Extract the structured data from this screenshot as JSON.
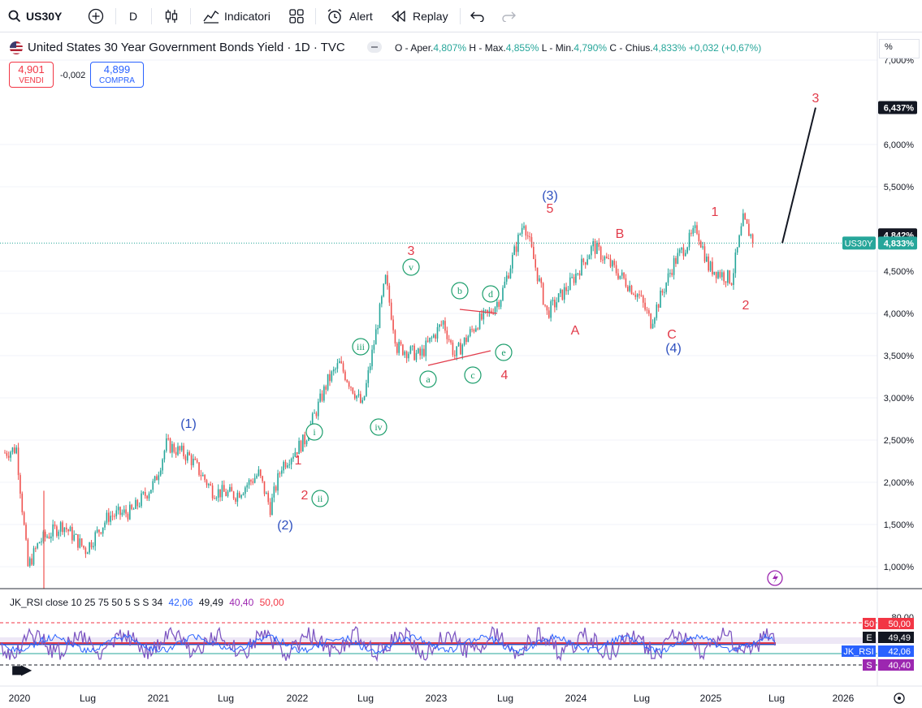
{
  "toolbar": {
    "symbol": "US30Y",
    "interval": "D",
    "indicators_label": "Indicatori",
    "alert_label": "Alert",
    "replay_label": "Replay"
  },
  "legend": {
    "title": "United States 30 Year Government Bonds Yield · 1D · TVC",
    "o_label": "O - Aper.",
    "o_val": "4,807%",
    "h_label": "H - Max.",
    "h_val": "4,855%",
    "l_label": "L - Min.",
    "l_val": "4,790%",
    "c_label": "C - Chius.",
    "c_val": "4,833%",
    "change": "+0,032 (+0,67%)"
  },
  "trade": {
    "sell_price": "4,901",
    "sell_label": "VENDI",
    "spread": "-0,002",
    "buy_price": "4,899",
    "buy_label": "COMPRA"
  },
  "scale_unit": "%",
  "price_axis_labels": [
    {
      "v": 7.0,
      "t": "7,000%"
    },
    {
      "v": 6.0,
      "t": "6,000%"
    },
    {
      "v": 5.5,
      "t": "5,500%"
    },
    {
      "v": 4.5,
      "t": "4,500%"
    },
    {
      "v": 4.0,
      "t": "4,000%"
    },
    {
      "v": 3.5,
      "t": "3,500%"
    },
    {
      "v": 3.0,
      "t": "3,000%"
    },
    {
      "v": 2.5,
      "t": "2,500%"
    },
    {
      "v": 2.0,
      "t": "2,000%"
    },
    {
      "v": 1.5,
      "t": "1,500%"
    },
    {
      "v": 1.0,
      "t": "1,000%"
    }
  ],
  "price_badges": {
    "target": "6,437%",
    "high": "4,842%",
    "current_symbol": "US30Y",
    "current": "4,833%"
  },
  "time_axis": [
    "2020",
    "Lug",
    "2021",
    "Lug",
    "2022",
    "Lug",
    "2023",
    "Lug",
    "2024",
    "Lug",
    "2025",
    "Lug",
    "2026"
  ],
  "rsi": {
    "title": "JK_RSI close 10 25 75 50 5 S S 34",
    "v1": "42,06",
    "v2": "49,49",
    "v3": "40,40",
    "v4": "50,00",
    "badges": [
      {
        "tag": "50",
        "val": "50,00",
        "color": "#f23645"
      },
      {
        "tag": "E",
        "val": "49,49",
        "color": "#131722"
      },
      {
        "tag": "JK_RSI",
        "val": "42,06",
        "color": "#2962ff"
      },
      {
        "tag": "S",
        "val": "40,40",
        "color": "#9c27b0"
      }
    ],
    "axis_top": "80,00"
  },
  "wave_labels": {
    "w1": "(1)",
    "w2": "(2)",
    "w3": "(3)",
    "w4": "(4)",
    "i": "i",
    "ii": "ii",
    "iii": "iii",
    "iv": "iv",
    "v": "v",
    "r1": "1",
    "r2": "2",
    "r3": "3",
    "r4": "4",
    "r5": "5",
    "a": "a",
    "b": "b",
    "c": "c",
    "d": "d",
    "e": "e",
    "A": "A",
    "B": "B",
    "C": "C",
    "n1": "1",
    "n2": "2",
    "n3": "3"
  },
  "colors": {
    "up": "#26a69a",
    "down": "#ef5350",
    "wave_blue": "#2d4fbf",
    "wave_red": "#e23b4a",
    "wave_green": "#1c9e6c",
    "rsi": "#7e57c2"
  },
  "chart_data": {
    "type": "line",
    "title": "United States 30 Year Government Bonds Yield",
    "x_labels": [
      "2020",
      "Lug",
      "2021",
      "Lug",
      "2022",
      "Lug",
      "2023",
      "Lug",
      "2024",
      "Lug",
      "2025",
      "Lug",
      "2026"
    ],
    "series": [
      {
        "name": "US30Y",
        "x": [
          "2020-01",
          "2020-02",
          "2020-03",
          "2020-04",
          "2020-06",
          "2020-08",
          "2020-10",
          "2020-12",
          "2021-02",
          "2021-03",
          "2021-05",
          "2021-07",
          "2021-09",
          "2021-11",
          "2021-12",
          "2022-01",
          "2022-03",
          "2022-05",
          "2022-06",
          "2022-08",
          "2022-10",
          "2022-11",
          "2023-01",
          "2023-03",
          "2023-04",
          "2023-06",
          "2023-07",
          "2023-08",
          "2023-10",
          "2023-12",
          "2024-02",
          "2024-04",
          "2024-06",
          "2024-08",
          "2024-09",
          "2024-11",
          "2025-01",
          "2025-02",
          "2025-04",
          "2025-05",
          "2025-06"
        ],
        "values": [
          2.35,
          2.4,
          1.0,
          1.3,
          1.5,
          1.2,
          1.6,
          1.65,
          2.0,
          2.45,
          2.3,
          1.9,
          1.85,
          2.1,
          1.7,
          2.2,
          2.5,
          3.2,
          3.4,
          2.9,
          4.4,
          3.6,
          3.5,
          3.9,
          3.5,
          3.9,
          4.0,
          4.2,
          5.1,
          4.0,
          4.35,
          4.8,
          4.5,
          4.2,
          3.9,
          4.6,
          5.0,
          4.55,
          4.4,
          5.1,
          4.833
        ]
      }
    ],
    "projection": {
      "from": "4,833%",
      "to": "6,437%"
    },
    "rsi_levels": {
      "upper": 50.0,
      "jk_rsi": 42.06,
      "e": 49.49,
      "s": 40.4
    }
  }
}
